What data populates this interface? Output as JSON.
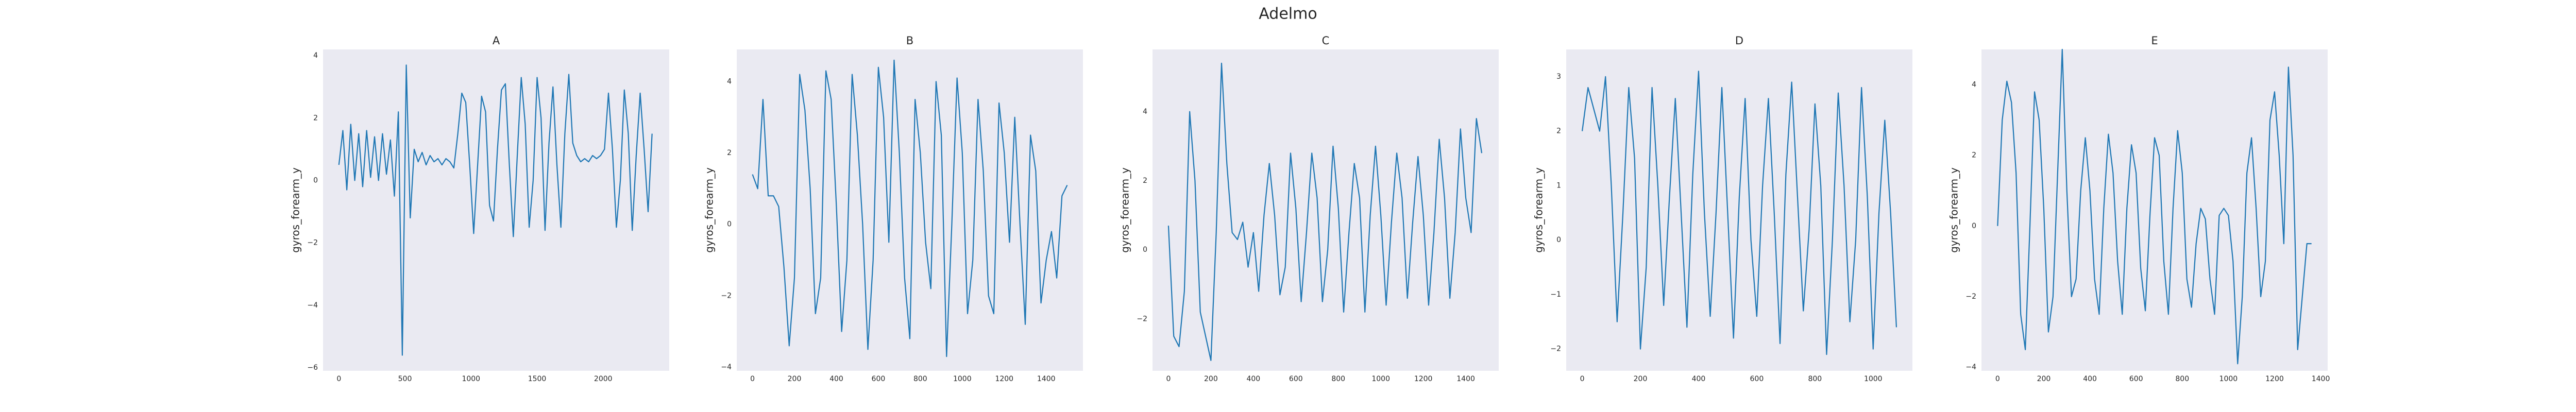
{
  "title": "Adelmo",
  "chart_data": [
    {
      "type": "line",
      "title": "A",
      "ylabel": "gyros_forearm_y",
      "color": "#1f77b4",
      "grid": false,
      "x": [
        0,
        30,
        60,
        90,
        120,
        150,
        180,
        210,
        240,
        270,
        300,
        330,
        360,
        390,
        420,
        450,
        480,
        510,
        540,
        570,
        600,
        630,
        660,
        690,
        720,
        750,
        780,
        810,
        840,
        870,
        900,
        930,
        960,
        990,
        1020,
        1050,
        1080,
        1110,
        1140,
        1170,
        1200,
        1230,
        1260,
        1290,
        1320,
        1350,
        1380,
        1410,
        1440,
        1470,
        1500,
        1530,
        1560,
        1590,
        1620,
        1650,
        1680,
        1710,
        1740,
        1770,
        1800,
        1830,
        1860,
        1890,
        1920,
        1950,
        1980,
        2010,
        2040,
        2070,
        2100,
        2130,
        2160,
        2190,
        2220,
        2250,
        2280,
        2310,
        2340,
        2370
      ],
      "values": [
        0.5,
        1.6,
        -0.3,
        1.8,
        0.0,
        1.5,
        -0.2,
        1.6,
        0.1,
        1.4,
        0.0,
        1.5,
        0.2,
        1.3,
        -0.5,
        2.2,
        -5.6,
        3.7,
        -1.2,
        1.0,
        0.6,
        0.9,
        0.5,
        0.8,
        0.6,
        0.7,
        0.5,
        0.7,
        0.6,
        0.4,
        1.5,
        2.8,
        2.5,
        0.5,
        -1.7,
        0.5,
        2.7,
        2.2,
        -0.8,
        -1.3,
        1.0,
        2.9,
        3.1,
        0.5,
        -1.8,
        0.8,
        3.3,
        1.8,
        -1.5,
        0.0,
        3.3,
        2.0,
        -1.6,
        1.2,
        3.0,
        0.5,
        -1.5,
        1.5,
        3.4,
        1.2,
        0.8,
        0.6,
        0.7,
        0.6,
        0.8,
        0.7,
        0.8,
        1.0,
        2.8,
        1.0,
        -1.5,
        0.0,
        2.9,
        1.5,
        -1.6,
        0.8,
        2.8,
        1.0,
        -1.0,
        1.5
      ],
      "xlim": [
        -120,
        2500
      ],
      "xticks": [
        0,
        500,
        1000,
        1500,
        2000
      ],
      "ylim": [
        -6.1,
        4.2
      ],
      "yticks": [
        {
          "value": -6,
          "label": "−6"
        },
        {
          "value": -4,
          "label": "−4"
        },
        {
          "value": -2,
          "label": "−2"
        },
        0,
        2,
        4
      ]
    },
    {
      "type": "line",
      "title": "B",
      "ylabel": "gyros_forearm_y",
      "color": "#1f77b4",
      "grid": false,
      "x": [
        0,
        25,
        50,
        75,
        100,
        125,
        150,
        175,
        200,
        225,
        250,
        275,
        300,
        325,
        350,
        375,
        400,
        425,
        450,
        475,
        500,
        525,
        550,
        575,
        600,
        625,
        650,
        675,
        700,
        725,
        750,
        775,
        800,
        825,
        850,
        875,
        900,
        925,
        950,
        975,
        1000,
        1025,
        1050,
        1075,
        1100,
        1125,
        1150,
        1175,
        1200,
        1225,
        1250,
        1275,
        1300,
        1325,
        1350,
        1375,
        1400,
        1425,
        1450,
        1475,
        1500
      ],
      "values": [
        1.4,
        1.0,
        3.5,
        0.8,
        0.8,
        0.5,
        -1.2,
        -3.4,
        -1.5,
        4.2,
        3.2,
        1.0,
        -2.5,
        -1.5,
        4.3,
        3.5,
        0.5,
        -3.0,
        -1.0,
        4.2,
        2.5,
        0.0,
        -3.5,
        -1.0,
        4.4,
        3.0,
        -0.5,
        4.6,
        2.0,
        -1.5,
        -3.2,
        3.5,
        2.0,
        -0.5,
        -1.8,
        4.0,
        2.5,
        -3.7,
        0.0,
        4.1,
        2.0,
        -2.5,
        -1.0,
        3.5,
        1.5,
        -2.0,
        -2.5,
        3.4,
        2.0,
        -0.5,
        3.0,
        0.0,
        -2.8,
        2.5,
        1.5,
        -2.2,
        -1.0,
        -0.2,
        -1.5,
        0.8,
        1.1
      ],
      "xlim": [
        -75,
        1575
      ],
      "xticks": [
        0,
        200,
        400,
        600,
        800,
        1000,
        1200,
        1400
      ],
      "ylim": [
        -4.1,
        4.9
      ],
      "yticks": [
        {
          "value": -4,
          "label": "−4"
        },
        {
          "value": -2,
          "label": "−2"
        },
        0,
        2,
        4
      ]
    },
    {
      "type": "line",
      "title": "C",
      "ylabel": "gyros_forearm_y",
      "color": "#1f77b4",
      "grid": false,
      "x": [
        0,
        25,
        50,
        75,
        100,
        125,
        150,
        175,
        200,
        225,
        250,
        275,
        300,
        325,
        350,
        375,
        400,
        425,
        450,
        475,
        500,
        525,
        550,
        575,
        600,
        625,
        650,
        675,
        700,
        725,
        750,
        775,
        800,
        825,
        850,
        875,
        900,
        925,
        950,
        975,
        1000,
        1025,
        1050,
        1075,
        1100,
        1125,
        1150,
        1175,
        1200,
        1225,
        1250,
        1275,
        1300,
        1325,
        1350,
        1375,
        1400,
        1425,
        1450,
        1475
      ],
      "values": [
        0.7,
        -2.5,
        -2.8,
        -1.2,
        4.0,
        2.0,
        -1.8,
        -2.5,
        -3.2,
        0.5,
        5.4,
        2.5,
        0.5,
        0.3,
        0.8,
        -0.5,
        0.5,
        -1.2,
        1.0,
        2.5,
        1.0,
        -1.3,
        -0.5,
        2.8,
        1.2,
        -1.5,
        0.5,
        2.8,
        1.5,
        -1.5,
        0.0,
        3.0,
        1.2,
        -1.8,
        0.5,
        2.5,
        1.5,
        -1.8,
        1.0,
        3.0,
        1.0,
        -1.6,
        0.8,
        2.8,
        1.5,
        -1.4,
        0.8,
        2.7,
        1.0,
        -1.6,
        0.5,
        3.2,
        1.5,
        -1.4,
        0.5,
        3.5,
        1.5,
        0.5,
        3.8,
        2.8
      ],
      "xlim": [
        -75,
        1555
      ],
      "xticks": [
        0,
        200,
        400,
        600,
        800,
        1000,
        1200,
        1400
      ],
      "ylim": [
        -3.5,
        5.8
      ],
      "yticks": [
        {
          "value": -2,
          "label": "−2"
        },
        0,
        2,
        4
      ]
    },
    {
      "type": "line",
      "title": "D",
      "ylabel": "gyros_forearm_y",
      "color": "#1f77b4",
      "grid": false,
      "x": [
        0,
        20,
        40,
        60,
        80,
        100,
        120,
        140,
        160,
        180,
        200,
        220,
        240,
        260,
        280,
        300,
        320,
        340,
        360,
        380,
        400,
        420,
        440,
        460,
        480,
        500,
        520,
        540,
        560,
        580,
        600,
        620,
        640,
        660,
        680,
        700,
        720,
        740,
        760,
        780,
        800,
        820,
        840,
        860,
        880,
        900,
        920,
        940,
        960,
        980,
        1000,
        1020,
        1040,
        1060,
        1080
      ],
      "values": [
        2.0,
        2.8,
        2.4,
        2.0,
        3.0,
        1.0,
        -1.5,
        0.5,
        2.8,
        1.5,
        -2.0,
        -0.5,
        2.8,
        1.0,
        -1.2,
        0.8,
        2.6,
        0.5,
        -1.6,
        1.2,
        3.1,
        0.5,
        -1.4,
        0.5,
        2.8,
        0.5,
        -1.8,
        0.8,
        2.6,
        0.0,
        -1.4,
        1.0,
        2.6,
        0.5,
        -1.9,
        1.2,
        2.9,
        0.8,
        -1.3,
        0.2,
        2.5,
        1.0,
        -2.1,
        0.0,
        2.7,
        1.0,
        -1.5,
        0.0,
        2.8,
        0.8,
        -2.0,
        0.5,
        2.2,
        0.5,
        -1.6
      ],
      "xlim": [
        -55,
        1135
      ],
      "xticks": [
        0,
        200,
        400,
        600,
        800,
        1000
      ],
      "ylim": [
        -2.4,
        3.5
      ],
      "yticks": [
        {
          "value": -2,
          "label": "−2"
        },
        {
          "value": -1,
          "label": "−1"
        },
        0,
        1,
        2,
        3
      ]
    },
    {
      "type": "line",
      "title": "E",
      "ylabel": "gyros_forearm_y",
      "color": "#1f77b4",
      "grid": false,
      "x": [
        0,
        20,
        40,
        60,
        80,
        100,
        120,
        140,
        160,
        180,
        200,
        220,
        240,
        260,
        280,
        300,
        320,
        340,
        360,
        380,
        400,
        420,
        440,
        460,
        480,
        500,
        520,
        540,
        560,
        580,
        600,
        620,
        640,
        660,
        680,
        700,
        720,
        740,
        760,
        780,
        800,
        820,
        840,
        860,
        880,
        900,
        920,
        940,
        960,
        980,
        1000,
        1020,
        1040,
        1060,
        1080,
        1100,
        1120,
        1140,
        1160,
        1180,
        1200,
        1220,
        1240,
        1260,
        1280,
        1300,
        1320,
        1340,
        1360
      ],
      "values": [
        0.0,
        3.0,
        4.1,
        3.5,
        1.5,
        -2.5,
        -3.5,
        0.0,
        3.8,
        3.0,
        0.5,
        -3.0,
        -2.0,
        1.5,
        5.0,
        1.0,
        -2.0,
        -1.5,
        1.0,
        2.5,
        1.0,
        -1.5,
        -2.5,
        0.5,
        2.6,
        1.5,
        -1.0,
        -2.5,
        0.5,
        2.3,
        1.5,
        -1.2,
        -2.4,
        0.3,
        2.5,
        2.0,
        -1.0,
        -2.5,
        0.5,
        2.7,
        1.5,
        -1.5,
        -2.3,
        -0.5,
        0.5,
        0.2,
        -1.5,
        -2.5,
        0.3,
        0.5,
        0.3,
        -1.0,
        -3.9,
        -2.0,
        1.5,
        2.5,
        0.5,
        -2.0,
        -1.0,
        3.0,
        3.8,
        2.0,
        -0.5,
        4.5,
        2.0,
        -3.5,
        -2.0,
        -0.5,
        -0.5
      ],
      "xlim": [
        -70,
        1430
      ],
      "xticks": [
        0,
        200,
        400,
        600,
        800,
        1000,
        1200,
        1400
      ],
      "ylim": [
        -4.1,
        5.0
      ],
      "yticks": [
        {
          "value": -4,
          "label": "−4"
        },
        {
          "value": -2,
          "label": "−2"
        },
        0,
        2,
        4
      ]
    }
  ]
}
